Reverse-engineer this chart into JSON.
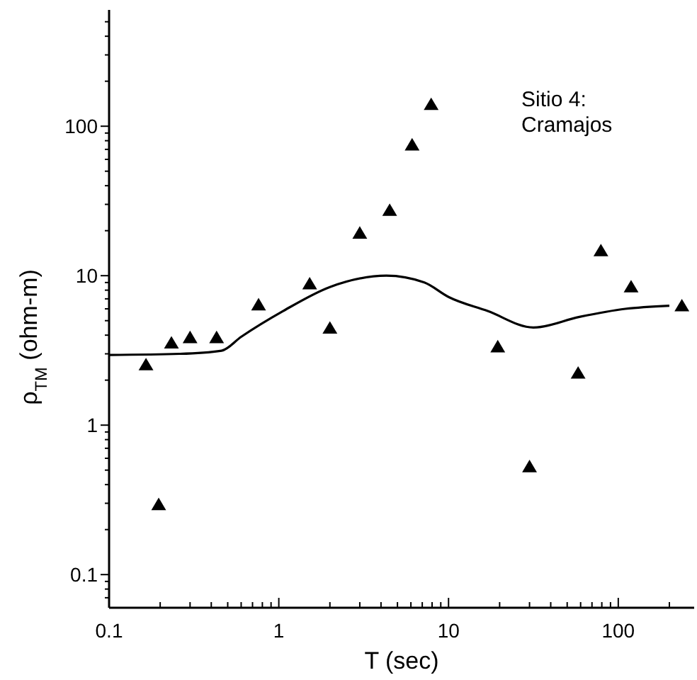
{
  "chart_data": {
    "type": "scatter",
    "xlabel": "T (sec)",
    "ylabel": "ρ$_{TM}$ (ohm-m)",
    "annotations": [
      "Sitio 4:\nCramajos"
    ],
    "log": "xy",
    "grid": false,
    "marker": "triangle",
    "xlim": [
      0.1,
      280
    ],
    "ylim": [
      0.06,
      600
    ],
    "xticks": [
      0.1,
      {
        "value": 0.2,
        "label": null
      },
      {
        "value": 0.3,
        "label": null
      },
      {
        "value": 0.4,
        "label": null
      },
      {
        "value": 0.5,
        "label": null
      },
      {
        "value": 0.6,
        "label": null
      },
      {
        "value": 0.7,
        "label": null
      },
      {
        "value": 0.8,
        "label": null
      },
      {
        "value": 0.9,
        "label": null
      },
      1,
      {
        "value": 2,
        "label": null
      },
      {
        "value": 3,
        "label": null
      },
      {
        "value": 4,
        "label": null
      },
      {
        "value": 5,
        "label": null
      },
      {
        "value": 6,
        "label": null
      },
      {
        "value": 7,
        "label": null
      },
      {
        "value": 8,
        "label": null
      },
      {
        "value": 9,
        "label": null
      },
      10,
      {
        "value": 20,
        "label": null
      },
      {
        "value": 30,
        "label": null
      },
      {
        "value": 40,
        "label": null
      },
      {
        "value": 50,
        "label": null
      },
      {
        "value": 60,
        "label": null
      },
      {
        "value": 70,
        "label": null
      },
      {
        "value": 80,
        "label": null
      },
      {
        "value": 90,
        "label": null
      },
      100,
      {
        "value": 200,
        "label": null
      }
    ],
    "yticks": [
      {
        "value": 0.07,
        "label": null
      },
      {
        "value": 0.08,
        "label": null
      },
      {
        "value": 0.09,
        "label": null
      },
      0.1,
      {
        "value": 0.2,
        "label": null
      },
      {
        "value": 0.3,
        "label": null
      },
      {
        "value": 0.4,
        "label": null
      },
      {
        "value": 0.5,
        "label": null
      },
      {
        "value": 0.6,
        "label": null
      },
      {
        "value": 0.7,
        "label": null
      },
      {
        "value": 0.8,
        "label": null
      },
      {
        "value": 0.9,
        "label": null
      },
      1,
      {
        "value": 2,
        "label": null
      },
      {
        "value": 3,
        "label": null
      },
      {
        "value": 4,
        "label": null
      },
      {
        "value": 5,
        "label": null
      },
      {
        "value": 6,
        "label": null
      },
      {
        "value": 7,
        "label": null
      },
      {
        "value": 8,
        "label": null
      },
      {
        "value": 9,
        "label": null
      },
      10,
      {
        "value": 20,
        "label": null
      },
      {
        "value": 30,
        "label": null
      },
      {
        "value": 40,
        "label": null
      },
      {
        "value": 50,
        "label": null
      },
      {
        "value": 60,
        "label": null
      },
      {
        "value": 70,
        "label": null
      },
      {
        "value": 80,
        "label": null
      },
      {
        "value": 90,
        "label": null
      },
      100,
      {
        "value": 200,
        "label": null
      },
      {
        "value": 300,
        "label": null
      },
      {
        "value": 400,
        "label": null
      },
      {
        "value": 500,
        "label": null
      }
    ],
    "series": [
      {
        "color": "#000000",
        "x": [
          0.165,
          0.196,
          0.233,
          0.3,
          0.43,
          0.76,
          1.52,
          2.0,
          3.0,
          4.5,
          6.1,
          7.9,
          19.5,
          30,
          58,
          79,
          119,
          237
        ],
        "values": [
          2.5,
          0.29,
          3.5,
          3.8,
          3.8,
          6.3,
          8.7,
          4.4,
          19,
          27,
          74,
          138,
          3.3,
          0.52,
          2.2,
          14.5,
          8.3,
          6.2
        ]
      },
      {
        "type": "line",
        "color": "#000000",
        "marker": "none",
        "line_style": "solid",
        "x": [
          0.1,
          0.26,
          0.46,
          0.6,
          1.06,
          2.0,
          4.3,
          7.2,
          10,
          17,
          31.6,
          59,
          110,
          200
        ],
        "values": [
          2.95,
          3.0,
          3.15,
          3.9,
          5.8,
          8.4,
          10.0,
          9.0,
          7.2,
          5.8,
          4.5,
          5.3,
          6.0,
          6.3
        ]
      }
    ]
  }
}
